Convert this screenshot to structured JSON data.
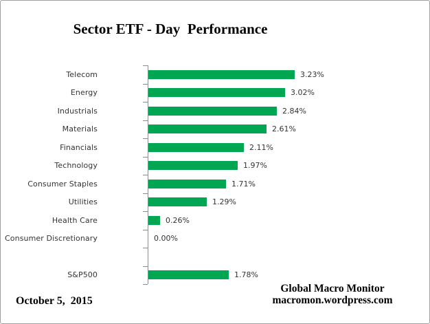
{
  "window": {
    "background_color": "#ffffff",
    "border_color": "#9e9e9e"
  },
  "chart_data": {
    "type": "bar",
    "orientation": "horizontal",
    "title": "Sector ETF - Day  Performance",
    "xlabel": "",
    "ylabel": "",
    "xlim": [
      0,
      3.5
    ],
    "grid": false,
    "legend": false,
    "bar_color": "#00a651",
    "axis_color": "#8c8c8c",
    "categories": [
      "Telecom",
      "Energy",
      "Industrials",
      "Materials",
      "Financials",
      "Technology",
      "Consumer Staples",
      "Utilities",
      "Health Care",
      "Consumer Discretionary",
      "",
      "S&P500"
    ],
    "values": [
      3.23,
      3.02,
      2.84,
      2.61,
      2.11,
      1.97,
      1.71,
      1.29,
      0.26,
      0.0,
      null,
      1.78
    ],
    "rows": [
      {
        "category": "Telecom",
        "value": 3.23,
        "label": "3.23%"
      },
      {
        "category": "Energy",
        "value": 3.02,
        "label": "3.02%"
      },
      {
        "category": "Industrials",
        "value": 2.84,
        "label": "2.84%"
      },
      {
        "category": "Materials",
        "value": 2.61,
        "label": "2.61%"
      },
      {
        "category": "Financials",
        "value": 2.11,
        "label": "2.11%"
      },
      {
        "category": "Technology",
        "value": 1.97,
        "label": "1.97%"
      },
      {
        "category": "Consumer Staples",
        "value": 1.71,
        "label": "1.71%"
      },
      {
        "category": "Utilities",
        "value": 1.29,
        "label": "1.29%"
      },
      {
        "category": "Health Care",
        "value": 0.26,
        "label": "0.26%"
      },
      {
        "category": "Consumer Discretionary",
        "value": 0.0,
        "label": "0.00%"
      },
      {
        "category": "",
        "value": null,
        "label": ""
      },
      {
        "category": "S&P500",
        "value": 1.78,
        "label": "1.78%"
      }
    ]
  },
  "footer": {
    "date": "October 5,  2015",
    "credit_line1": "Global Macro Monitor",
    "credit_line2": "macromon.wordpress.com"
  }
}
